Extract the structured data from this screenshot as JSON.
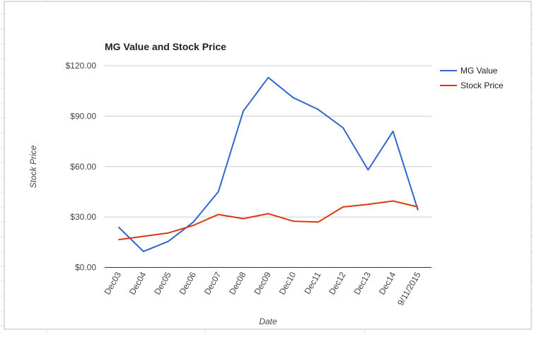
{
  "chart_data": {
    "type": "line",
    "title": "MG Value and Stock Price",
    "xlabel": "Date",
    "ylabel": "Stock Price",
    "categories": [
      "Dec03",
      "Dec04",
      "Dec05",
      "Dec06",
      "Dec07",
      "Dec08",
      "Dec09",
      "Dec10",
      "Dec11",
      "Dec12",
      "Dec13",
      "Dec14",
      "9/11/2015"
    ],
    "y_ticks": [
      {
        "value": 0,
        "label": "$0.00"
      },
      {
        "value": 30,
        "label": "$30.00"
      },
      {
        "value": 60,
        "label": "$60.00"
      },
      {
        "value": 90,
        "label": "$90.00"
      },
      {
        "value": 120,
        "label": "$120.00"
      }
    ],
    "ylim": [
      0,
      120
    ],
    "grid": true,
    "legend_position": "top-right",
    "series": [
      {
        "name": "MG Value",
        "color": "#3366cc",
        "values": [
          24,
          9.5,
          15.5,
          27,
          45,
          93,
          113,
          101,
          94,
          83,
          58,
          81,
          34
        ]
      },
      {
        "name": "Stock Price",
        "color": "#dc3912",
        "values": [
          16.5,
          18.5,
          20.5,
          25,
          31.5,
          29,
          32,
          27.5,
          27,
          36,
          37.5,
          39.5,
          36
        ]
      }
    ]
  }
}
